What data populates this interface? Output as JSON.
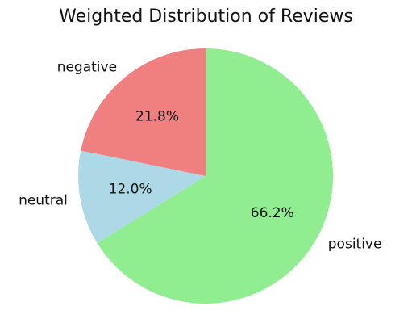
{
  "chart_data": {
    "type": "pie",
    "title": "Weighted Distribution of Reviews",
    "slices": [
      {
        "label": "positive",
        "value": 66.2,
        "pct_label": "66.2%",
        "color": "#90ee90"
      },
      {
        "label": "neutral",
        "value": 12.0,
        "pct_label": "12.0%",
        "color": "#add8e6"
      },
      {
        "label": "negative",
        "value": 21.8,
        "pct_label": "21.8%",
        "color": "#f08080"
      }
    ],
    "start_angle_deg": 90,
    "direction": "clockwise",
    "legend": "none"
  }
}
